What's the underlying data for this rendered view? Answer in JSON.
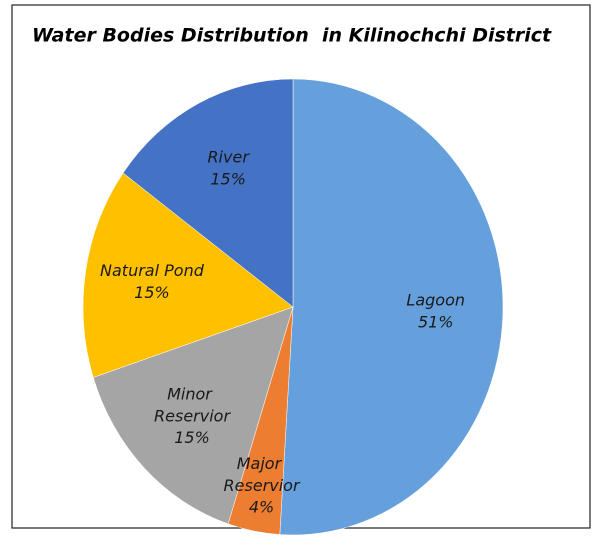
{
  "chart_data": {
    "type": "pie",
    "title": "Water Bodies Distribution  in Kilinochchi District",
    "categories": [
      "Lagoon",
      "Major Reservior",
      "Minor Reservior",
      "Natural Pond",
      "River"
    ],
    "values": [
      51,
      4,
      15,
      15,
      15
    ],
    "value_labels": [
      "51%",
      "4%",
      "15%",
      "15%",
      "15%"
    ],
    "colors": [
      "#65a0dc",
      "#ed7d31",
      "#a5a5a5",
      "#ffc000",
      "#4472c4"
    ]
  }
}
